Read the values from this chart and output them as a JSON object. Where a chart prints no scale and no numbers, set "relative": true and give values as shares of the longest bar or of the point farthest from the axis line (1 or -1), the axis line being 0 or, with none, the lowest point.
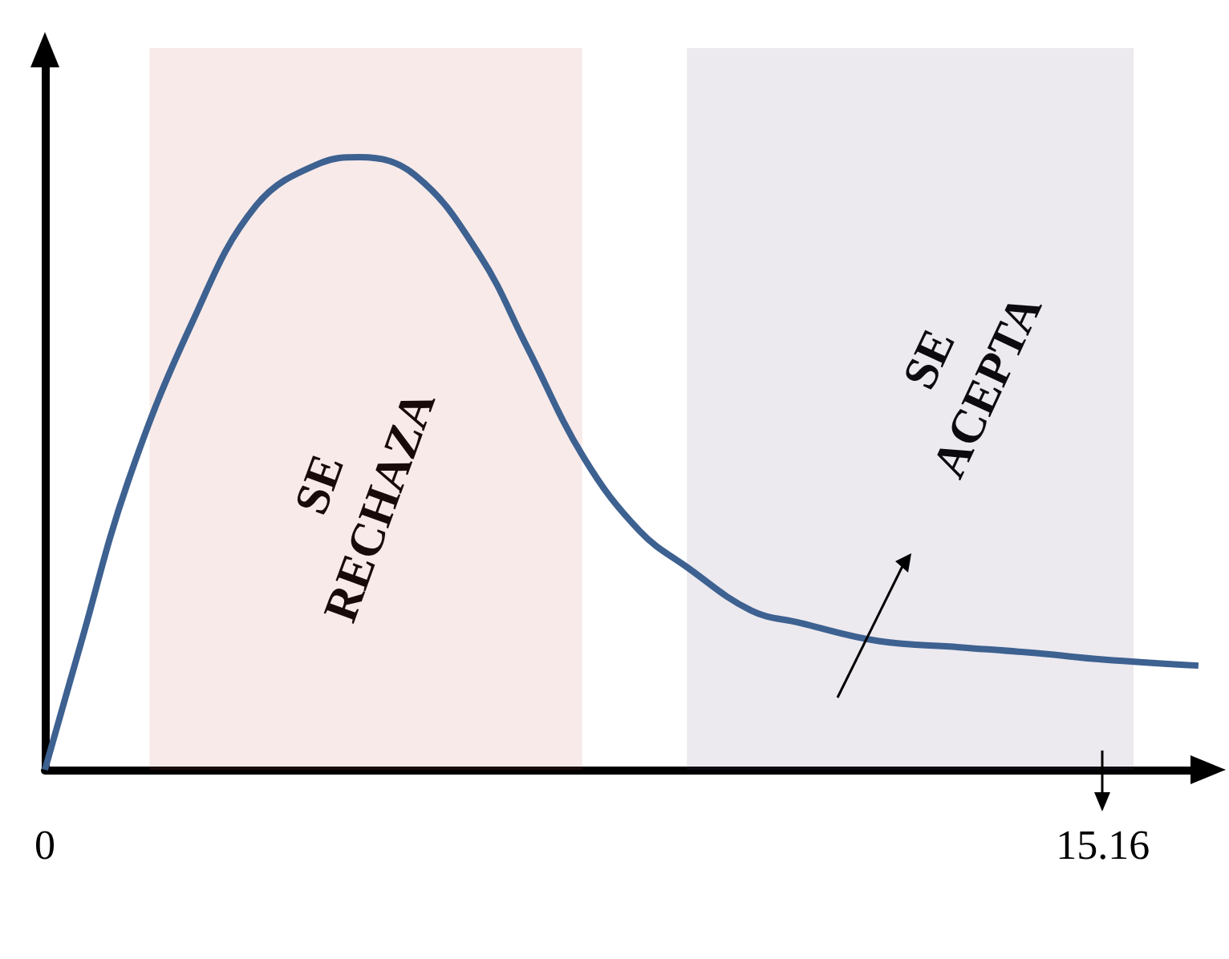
{
  "chart_data": {
    "type": "line",
    "relative": true,
    "x": [
      0,
      0.5,
      1.19,
      2.11,
      3.02,
      3.94,
      4.51,
      5.31,
      6.23,
      6.91,
      7.72,
      8.52,
      9.21,
      10.12,
      10.81,
      11.95,
      13.1,
      14.24,
      15.16,
      16.53
    ],
    "series": [
      {
        "color": "#3d6190",
        "values": [
          0,
          0.2,
          0.47,
          0.73,
          0.92,
          0.99,
          1,
          0.97,
          0.84,
          0.69,
          0.51,
          0.39,
          0.33,
          0.26,
          0.24,
          0.21,
          0.2,
          0.19,
          0.18,
          0.17
        ]
      }
    ],
    "xlim": [
      0,
      16.6
    ],
    "xticks": [
      0,
      15.16
    ],
    "bands": [
      {
        "axis": "x",
        "from": 1.5,
        "to": 7.7,
        "label": "SE RECHAZA",
        "color": "#c0504d"
      },
      {
        "axis": "x",
        "from": 9.2,
        "to": 15.6,
        "label": "SE ACEPTA",
        "color": "#604a7b"
      }
    ],
    "grid": false,
    "marker": "none",
    "line_style": "solid"
  }
}
